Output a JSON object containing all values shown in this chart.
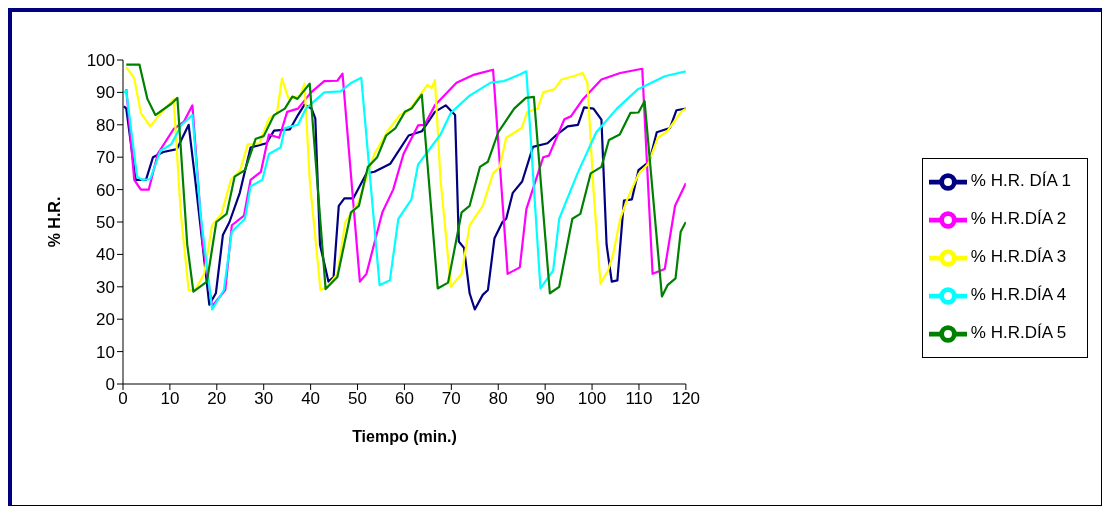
{
  "chart_data": {
    "type": "line",
    "xlabel": "Tiempo (min.)",
    "ylabel": "% H.R.",
    "xlim": [
      0,
      120
    ],
    "xticks": [
      0,
      10,
      20,
      30,
      40,
      50,
      60,
      70,
      80,
      90,
      100,
      110,
      120
    ],
    "ylim": [
      0,
      100
    ],
    "yticks": [
      0,
      10,
      20,
      30,
      40,
      50,
      60,
      70,
      80,
      90,
      100
    ],
    "grid": false,
    "legend": "right",
    "series": [
      {
        "name": "% H.R. DÍA 1",
        "color": "#000080",
        "x": [
          0.2,
          0.7,
          2.7,
          4.9,
          6.4,
          8.6,
          11.5,
          14,
          15.4,
          18.4,
          19.8,
          21.3,
          22.7,
          24.9,
          27.2,
          30.6,
          32.2,
          35.6,
          37.3,
          38.7,
          40.2,
          41,
          42,
          43.8,
          44.9,
          46,
          47.2,
          49.1,
          51.9,
          53.6,
          57,
          60.9,
          63.7,
          66.5,
          68.8,
          70.8,
          71.6,
          72.7,
          73.9,
          75,
          76.7,
          77.8,
          79.2,
          80.9,
          81.7,
          83.1,
          85.1,
          87.4,
          90.5,
          92.5,
          94.8,
          97,
          98.3,
          100.3,
          102,
          103.1,
          104.2,
          105.4,
          106.8,
          108.5,
          109.9,
          112.2,
          113.8,
          116.6,
          118,
          120
        ],
        "values": [
          85.7,
          85,
          63,
          63,
          70,
          71.6,
          72.5,
          80,
          63,
          24.5,
          28,
          46,
          50,
          59,
          73,
          74.3,
          78.2,
          78.6,
          83,
          86.2,
          85,
          82,
          43,
          31.6,
          33,
          55,
          57.3,
          57.3,
          65,
          65.5,
          68,
          76.7,
          78,
          84,
          86,
          83,
          44,
          42,
          28,
          23,
          27.5,
          29,
          45,
          50,
          51,
          59,
          62.5,
          73.2,
          74.3,
          77,
          79.5,
          80,
          85.4,
          85,
          81.6,
          43,
          31.6,
          32,
          56.6,
          57,
          66,
          68.6,
          77.7,
          79,
          84.5,
          85
        ]
      },
      {
        "name": "% H.R.DÍA 2",
        "color": "#ff00ff",
        "x": [
          0.7,
          2.4,
          3.8,
          5.5,
          7.4,
          10.8,
          13,
          14.8,
          17,
          19,
          21.8,
          23.2,
          25.8,
          27.2,
          29.4,
          31.1,
          33.3,
          35,
          37.3,
          40.1,
          42.9,
          45.7,
          46.8,
          50.5,
          51.9,
          55.3,
          57.6,
          59.8,
          62.9,
          64.3,
          66.5,
          71.1,
          74.9,
          78.9,
          82,
          84.6,
          86,
          89.6,
          90.8,
          94.1,
          95.5,
          98.1,
          102,
          106,
          110.7,
          112.9,
          115.5,
          117.7,
          120
        ],
        "values": [
          91,
          63,
          60,
          60,
          71,
          78.7,
          81,
          86,
          43,
          24,
          29,
          49,
          52,
          63,
          65.5,
          77,
          76,
          84,
          85,
          90,
          93.5,
          93.6,
          95.8,
          31.6,
          34,
          53,
          60,
          71,
          79.8,
          80,
          86,
          93,
          95.5,
          97,
          34,
          36,
          54,
          70,
          70.5,
          81.7,
          82.6,
          88,
          94,
          96,
          97.3,
          34,
          35.5,
          55,
          62
        ]
      },
      {
        "name": "% H.R.DÍA 3",
        "color": "#ffff00",
        "x": [
          0.7,
          2.4,
          3.8,
          5.8,
          8,
          10.8,
          12.3,
          14,
          15.4,
          17.3,
          19,
          21,
          23,
          25,
          26.6,
          29.1,
          31.1,
          32.8,
          33.9,
          35.3,
          37.8,
          38.7,
          39.8,
          42.1,
          43.5,
          45.7,
          47.4,
          50.2,
          52.2,
          53.6,
          56.4,
          59,
          61,
          64.9,
          65.8,
          66.5,
          67.7,
          69.9,
          72.2,
          73.9,
          76.7,
          78.9,
          80.3,
          81.7,
          85,
          86.2,
          88.4,
          89.6,
          92,
          93.5,
          96,
          98,
          99,
          100.3,
          101.8,
          103.4,
          104.5,
          106,
          107.5,
          110,
          112,
          114,
          116,
          119,
          120
        ],
        "values": [
          97.8,
          94.3,
          83.7,
          79.5,
          83.5,
          88,
          53,
          29,
          29,
          34,
          49,
          52.5,
          63,
          66,
          74,
          74.3,
          82,
          83.5,
          94.3,
          88,
          89,
          92.7,
          63,
          29,
          30,
          34,
          50,
          56,
          65,
          71,
          78,
          83,
          84.5,
          92.3,
          91.3,
          93.8,
          63,
          30,
          34,
          49,
          55,
          65,
          67,
          76,
          79,
          84,
          85,
          90,
          91,
          94,
          95,
          96,
          93,
          60,
          31,
          35,
          40,
          51,
          57,
          65,
          68,
          76,
          78,
          84,
          85
        ]
      },
      {
        "name": "% H.R.DÍA 4",
        "color": "#00ffff",
        "x": [
          0.2,
          0.7,
          3,
          4.1,
          5.8,
          8,
          10.3,
          12.5,
          14.8,
          16.5,
          19,
          21.5,
          23.2,
          26,
          27.2,
          29.7,
          31.1,
          33.6,
          34.5,
          37.3,
          39,
          42.9,
          46.4,
          48.7,
          50.8,
          54.7,
          56.9,
          58.7,
          61.5,
          62.9,
          67.7,
          69.9,
          73.9,
          78.4,
          81.2,
          84.6,
          86,
          89,
          91.7,
          93,
          96.9,
          100.9,
          105.3,
          109.8,
          115.5,
          120
        ],
        "values": [
          90,
          90.5,
          64,
          63,
          63.2,
          72,
          74,
          80,
          83,
          53,
          23,
          29,
          47,
          51,
          61,
          63,
          71,
          73,
          79,
          80,
          85,
          90,
          90.3,
          93,
          94.5,
          30.5,
          32,
          51,
          57,
          67.7,
          77,
          83.7,
          89,
          93,
          93.5,
          95.5,
          96.5,
          29.5,
          35,
          51,
          65,
          77.7,
          85,
          91,
          95,
          96.5
        ]
      },
      {
        "name": "% H.R.DÍA 5",
        "color": "#008000",
        "x": [
          0.7,
          3.5,
          5.2,
          6.9,
          10.3,
          11.6,
          13.7,
          15,
          17.9,
          19.9,
          22.1,
          23.8,
          26,
          28.3,
          30,
          32.2,
          34.5,
          36.1,
          37.2,
          39.8,
          43.2,
          45.7,
          48.6,
          50.3,
          52.2,
          54.2,
          56.1,
          58.1,
          60.1,
          61.5,
          63.7,
          67.1,
          69.3,
          72.2,
          73.9,
          76.1,
          77.8,
          80,
          83.4,
          85.9,
          87.6,
          91,
          93,
          95.8,
          97.5,
          99.7,
          102,
          103.6,
          105.9,
          108.2,
          109.9,
          111.2,
          114.9,
          116.1,
          117.8,
          118.9,
          120
        ],
        "values": [
          98.6,
          98.6,
          88,
          83,
          86.5,
          88.3,
          43,
          28.5,
          31.6,
          50,
          52.5,
          64,
          66,
          75.7,
          76.5,
          83,
          85,
          88.7,
          88,
          92.7,
          29.3,
          33,
          53,
          55,
          67,
          70,
          76.7,
          79,
          84,
          85,
          89.3,
          29.5,
          31.3,
          53,
          55,
          67,
          68.6,
          77.7,
          85,
          88.3,
          88.6,
          28,
          30,
          51,
          52.5,
          65,
          67,
          75.3,
          77,
          83.7,
          83.8,
          87.3,
          27,
          30.5,
          32.6,
          47,
          50
        ]
      }
    ]
  }
}
